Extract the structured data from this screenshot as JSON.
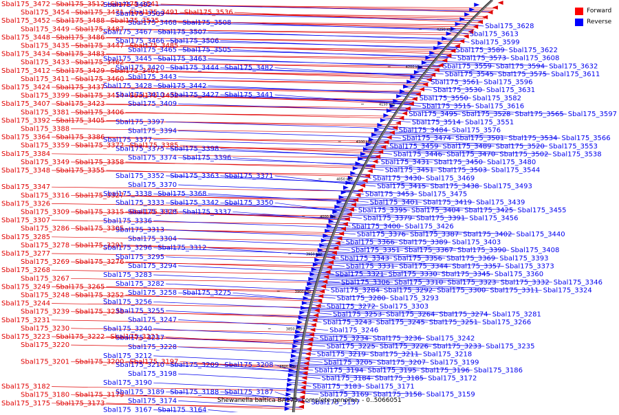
{
  "legend": {
    "items": [
      {
        "label": "Forward",
        "color": "#ff0000"
      },
      {
        "label": "Reverse",
        "color": "#0000ff"
      }
    ]
  },
  "colors": {
    "forward": "#e00000",
    "reverse": "#0000ee",
    "backbone": "#777777"
  },
  "caption": "Shewanella baltica BA175, complete genome. - 0..5066051",
  "ruler": [
    "3800 kbp",
    "3850 kbp",
    "3900 kbp",
    "3950 kbp",
    "4000 kbp",
    "4050 kbp",
    "4100 kbp",
    "4150 kbp",
    "4200 kbp",
    "4250 kbp"
  ],
  "forward_labels": [
    [
      "Sbal175_3472",
      "Sbal175_3512",
      "Sbal175_3541"
    ],
    [
      "Sbal175_3454",
      "Sbal175_3471",
      "Sbal175_3491",
      "Sbal175_3536"
    ],
    [
      "Sbal175_3452",
      "Sbal175_3488",
      "Sbal175_3535"
    ],
    [
      "Sbal175_3449",
      "Sbal175_3487"
    ],
    [
      "Sbal175_3448",
      "Sbal175_3486"
    ],
    [
      "Sbal175_3435",
      "Sbal175_3447",
      "Sbal175_3485"
    ],
    [
      "Sbal175_3434",
      "Sbal175_3483"
    ],
    [
      "Sbal175_3433",
      "Sbal175_3462"
    ],
    [
      "Sbal175_3412",
      "Sbal175_3429",
      "Sbal175_3461"
    ],
    [
      "Sbal175_3411",
      "Sbal175_3460"
    ],
    [
      "Sbal175_3424",
      "Sbal175_3437"
    ],
    [
      "Sbal175_3399",
      "Sbal175_3414",
      "Sbal175_3432"
    ],
    [
      "Sbal175_3407",
      "Sbal175_3423"
    ],
    [
      "Sbal175_3381",
      "Sbal175_3406"
    ],
    [
      "Sbal175_3392",
      "Sbal175_3405"
    ],
    [
      "Sbal175_3388"
    ],
    [
      "Sbal175_3364",
      "Sbal175_3386"
    ],
    [
      "Sbal175_3359",
      "Sbal175_3372",
      "Sbal175_3385"
    ],
    [
      "Sbal175_3384"
    ],
    [
      "Sbal175_3349",
      "Sbal175_3358"
    ],
    [
      "Sbal175_3348",
      "Sbal175_3355"
    ],
    [],
    [
      "Sbal175_3347"
    ],
    [
      "Sbal175_3316",
      "Sbal175_3327"
    ],
    [
      "Sbal175_3326"
    ],
    [
      "Sbal175_3309",
      "Sbal175_3315",
      "Sbal175_3325"
    ],
    [
      "Sbal175_3307"
    ],
    [
      "Sbal175_3286",
      "Sbal175_3305"
    ],
    [
      "Sbal175_3285"
    ],
    [
      "Sbal175_3278",
      "Sbal175_3291"
    ],
    [
      "Sbal175_3277"
    ],
    [
      "Sbal175_3269",
      "Sbal175_3276"
    ],
    [
      "Sbal175_3268"
    ],
    [
      "Sbal175_3267"
    ],
    [
      "Sbal175_3249",
      "Sbal175_3265"
    ],
    [
      "Sbal175_3248",
      "Sbal175_3252"
    ],
    [
      "Sbal175_3244"
    ],
    [
      "Sbal175_3239",
      "Sbal175_3238"
    ],
    [
      "Sbal175_3231"
    ],
    [
      "Sbal175_3230"
    ],
    [
      "Sbal175_3223",
      "Sbal175_3222",
      "Sbal175_3221"
    ],
    [
      "Sbal175_3220"
    ],
    [],
    [
      "Sbal175_3201",
      "Sbal175_3200",
      "Sbal175_3197"
    ],
    [],
    [],
    [
      "Sbal175_3182"
    ],
    [
      "Sbal175_3180",
      "Sbal175_3179"
    ],
    [
      "Sbal175_3175",
      "Sbal175_3173"
    ]
  ],
  "left_reverse_labels": [
    [
      "Sbal175_3492"
    ],
    [
      "Sbal175_3509"
    ],
    [
      "Sbal175_3468",
      "Sbal175_3508"
    ],
    [
      "Sbal175_3467",
      "Sbal175_3507"
    ],
    [
      "Sbal175_3466",
      "Sbal175_3506"
    ],
    [
      "Sbal175_3465",
      "Sbal175_3505"
    ],
    [
      "Sbal175_3445",
      "Sbal175_3463"
    ],
    [
      "Sbal175_3420",
      "Sbal175_3444",
      "Sbal175_3482"
    ],
    [
      "Sbal175_3443"
    ],
    [
      "Sbal175_3428",
      "Sbal175_3442"
    ],
    [
      "Sbal175_3410",
      "Sbal175_3427",
      "Sbal175_3441"
    ],
    [
      "Sbal175_3409"
    ],
    [],
    [
      "Sbal175_3397"
    ],
    [
      "Sbal175_3394"
    ],
    [
      "Sbal175_3377"
    ],
    [
      "Sbal175_3375",
      "Sbal175_3398"
    ],
    [
      "Sbal175_3374",
      "Sbal175_3396"
    ],
    [],
    [
      "Sbal175_3352",
      "Sbal175_3363",
      "Sbal175_3371"
    ],
    [
      "Sbal175_3370"
    ],
    [
      "Sbal175_3338",
      "Sbal175_3368"
    ],
    [
      "Sbal175_3333",
      "Sbal175_3342",
      "Sbal175_3350"
    ],
    [
      "Sbal175_3328",
      "Sbal175_3337"
    ],
    [
      "Sbal175_3336"
    ],
    [
      "Sbal175_3313"
    ],
    [
      "Sbal175_3304"
    ],
    [
      "Sbal175_3296",
      "Sbal175_3312"
    ],
    [
      "Sbal175_3295"
    ],
    [
      "Sbal175_3294"
    ],
    [
      "Sbal175_3283"
    ],
    [
      "Sbal175_3282"
    ],
    [
      "Sbal175_3258",
      "Sbal175_3275"
    ],
    [
      "Sbal175_3256"
    ],
    [
      "Sbal175_3255"
    ],
    [
      "Sbal175_3247"
    ],
    [
      "Sbal175_3240"
    ],
    [
      "Sbal175_3237"
    ],
    [
      "Sbal175_3228"
    ],
    [
      "Sbal175_3212"
    ],
    [
      "Sbal175_3210",
      "Sbal175_3209",
      "Sbal175_3208"
    ],
    [
      "Sbal175_3198"
    ],
    [
      "Sbal175_3190"
    ],
    [
      "Sbal175_3189",
      "Sbal175_3188",
      "Sbal175_3187"
    ],
    [
      "Sbal175_3174"
    ],
    [
      "Sbal175_3167",
      "Sbal175_3164"
    ]
  ],
  "right_labels": [
    [
      "Sbal175_3628"
    ],
    [
      "Sbal175_3613"
    ],
    [
      "Sbal175_3599"
    ],
    [
      "Sbal175_3589",
      "Sbal175_3622"
    ],
    [
      "Sbal175_3573",
      "Sbal175_3608"
    ],
    [
      "Sbal175_3559",
      "Sbal175_3594",
      "Sbal175_3632"
    ],
    [
      "Sbal175_3545",
      "Sbal175_3575",
      "Sbal175_3611"
    ],
    [
      "Sbal175_3561",
      "Sbal175_3596"
    ],
    [
      "Sbal175_3530",
      "Sbal175_3631"
    ],
    [
      "Sbal175_3550",
      "Sbal175_3582"
    ],
    [
      "Sbal175_3515",
      "Sbal175_3616"
    ],
    [
      "Sbal175_3495",
      "Sbal175_3528",
      "Sbal175_3565",
      "Sbal175_3597"
    ],
    [
      "Sbal175_3514",
      "Sbal175_3551"
    ],
    [
      "Sbal175_3484",
      "Sbal175_3576"
    ],
    [
      "Sbal175_3474",
      "Sbal175_3501",
      "Sbal175_3534",
      "Sbal175_3566"
    ],
    [
      "Sbal175_3459",
      "Sbal175_3489",
      "Sbal175_3520",
      "Sbal175_3553"
    ],
    [
      "Sbal175_3446",
      "Sbal175_3470",
      "Sbal175_3502",
      "Sbal175_3538"
    ],
    [
      "Sbal175_3431",
      "Sbal175_3450",
      "Sbal175_3480"
    ],
    [
      "Sbal175_3451",
      "Sbal175_3503",
      "Sbal175_3544"
    ],
    [
      "Sbal175_3430",
      "Sbal175_3469"
    ],
    [
      "Sbal175_3415",
      "Sbal175_3438",
      "Sbal175_3493"
    ],
    [
      "Sbal175_3453",
      "Sbal175_3475"
    ],
    [
      "Sbal175_3401",
      "Sbal175_3419",
      "Sbal175_3439"
    ],
    [
      "Sbal175_3395",
      "Sbal175_3404",
      "Sbal175_3425",
      "Sbal175_3455"
    ],
    [
      "Sbal175_3379",
      "Sbal175_3391",
      "Sbal175_3456"
    ],
    [
      "Sbal175_3400",
      "Sbal175_3426"
    ],
    [
      "Sbal175_3376",
      "Sbal175_3387",
      "Sbal175_3402",
      "Sbal175_3440"
    ],
    [
      "Sbal175_3366",
      "Sbal175_3389",
      "Sbal175_3403"
    ],
    [
      "Sbal175_3351",
      "Sbal175_3367",
      "Sbal175_3390",
      "Sbal175_3408"
    ],
    [
      "Sbal175_3343",
      "Sbal175_3356",
      "Sbal175_3369",
      "Sbal175_3393"
    ],
    [
      "Sbal175_3331",
      "Sbal175_3344",
      "Sbal175_3357",
      "Sbal175_3373"
    ],
    [
      "Sbal175_3321",
      "Sbal175_3330",
      "Sbal175_3345",
      "Sbal175_3360"
    ],
    [
      "Sbal175_3306",
      "Sbal175_3310",
      "Sbal175_3323",
      "Sbal175_3332",
      "Sbal175_3346"
    ],
    [
      "Sbal175_3284",
      "Sbal175_3292",
      "Sbal175_3300",
      "Sbal175_3311",
      "Sbal175_3324"
    ],
    [
      "Sbal175_3280",
      "Sbal175_3293"
    ],
    [
      "Sbal175_3272",
      "Sbal175_3303"
    ],
    [
      "Sbal175_3253",
      "Sbal175_3264",
      "Sbal175_3274",
      "Sbal175_3281"
    ],
    [
      "Sbal175_3243",
      "Sbal175_3245",
      "Sbal175_3251",
      "Sbal175_3266"
    ],
    [
      "Sbal175_3246"
    ],
    [
      "Sbal175_3234",
      "Sbal175_3236",
      "Sbal175_3242"
    ],
    [
      "Sbal175_3225",
      "Sbal175_3226",
      "Sbal175_3233",
      "Sbal175_3235"
    ],
    [
      "Sbal175_3219",
      "Sbal175_3211",
      "Sbal175_3218"
    ],
    [
      "Sbal175_3205",
      "Sbal175_3207",
      "Sbal175_3199"
    ],
    [
      "Sbal175_3194",
      "Sbal175_3195",
      "Sbal175_3196",
      "Sbal175_3186"
    ],
    [
      "Sbal175_3184",
      "Sbal175_3185",
      "Sbal175_3172"
    ],
    [
      "Sbal175_3183",
      "Sbal175_3171"
    ],
    [
      "Sbal175_3169",
      "Sbal175_3158",
      "Sbal175_3159"
    ],
    [
      "Sbal175_3157"
    ]
  ]
}
